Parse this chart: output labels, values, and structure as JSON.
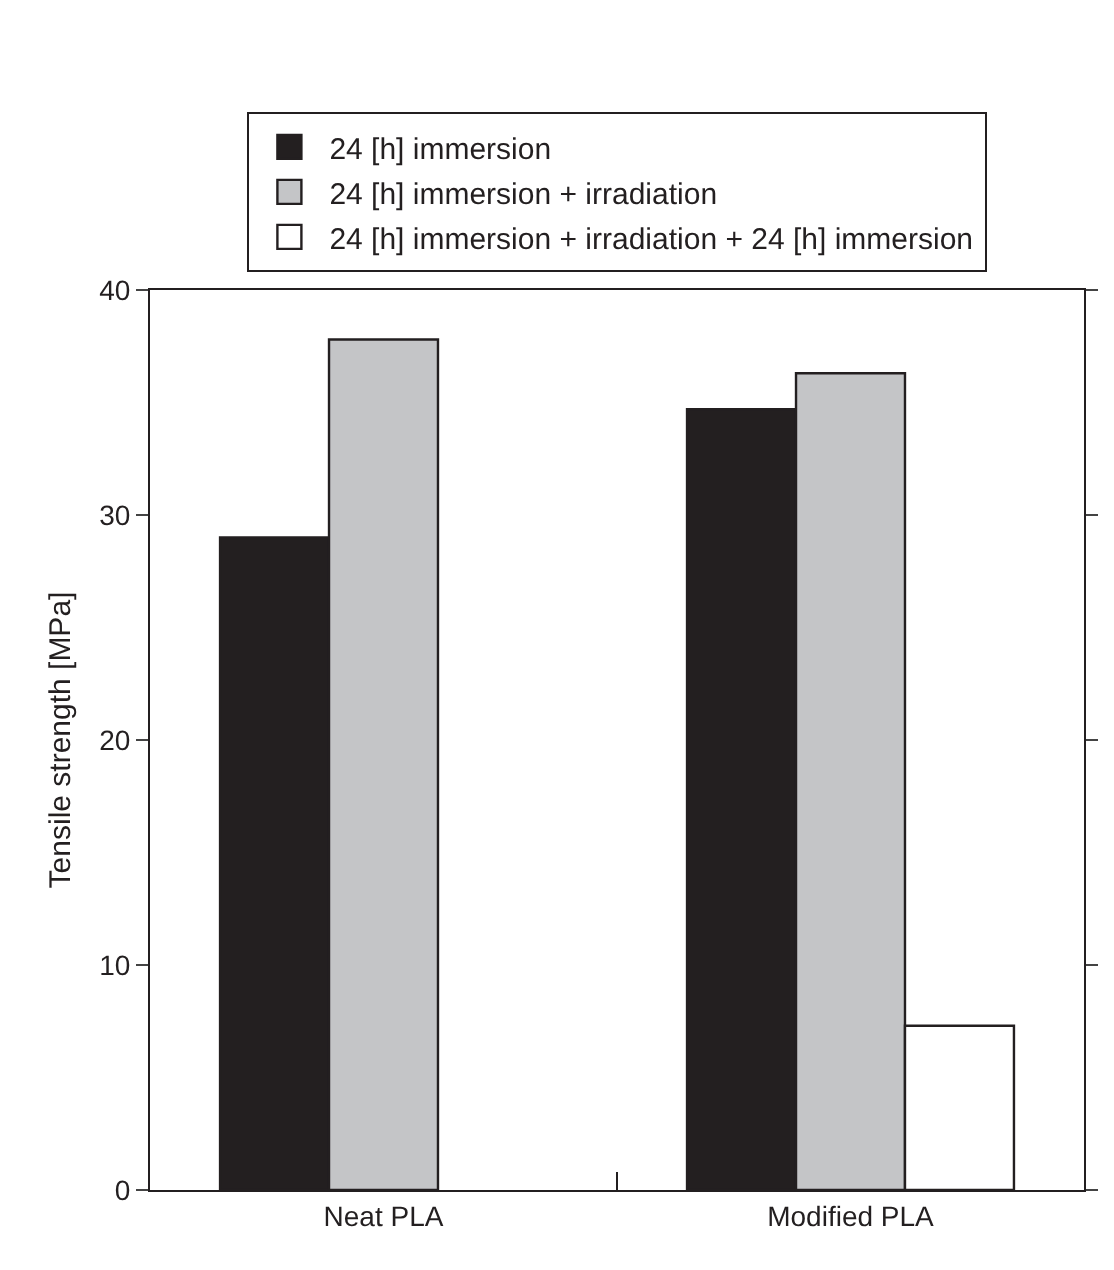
{
  "chart_data": {
    "type": "bar",
    "ylabel": "Tensile strength [MPa]",
    "categories": [
      "Neat PLA",
      "Modified PLA"
    ],
    "series": [
      {
        "name": "24 [h] immersion",
        "color": "#231f20",
        "values": [
          29.0,
          34.7
        ]
      },
      {
        "name": "24 [h] immersion + irradiation",
        "color": "#c4c5c7",
        "values": [
          37.8,
          36.3
        ]
      },
      {
        "name": "24 [h] immersion + irradiation + 24 [h] immersion",
        "color": "#ffffff",
        "values": [
          null,
          7.3
        ]
      }
    ],
    "ylim": [
      0,
      40
    ],
    "yticks": [
      0,
      10,
      20,
      30,
      40
    ],
    "grid": false,
    "legend": "top"
  }
}
